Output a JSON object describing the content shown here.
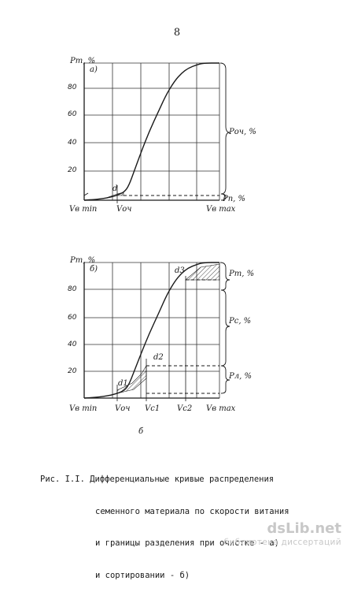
{
  "page_number": "8",
  "caption": {
    "prefix": "Рис. I.I.",
    "lines": [
      "Дифференциальные кривые распределения",
      "семенного материала по скорости витания",
      "и границы разделения при очистке - а)",
      "и сортировании - б)"
    ]
  },
  "watermark": {
    "brand": "dsLib.net",
    "subtitle": "библиотека диссертаций"
  },
  "chart_data": [
    {
      "type": "line",
      "panel_label": "а)",
      "ylabel": "Рт, %",
      "y_ticks": [
        "20",
        "40",
        "60",
        "80"
      ],
      "ylim": [
        0,
        100
      ],
      "x_ticks": [
        "Vв min",
        "Vоч",
        "Vв max"
      ],
      "series": [
        {
          "points": [
            [
              0,
              0
            ],
            [
              0.08,
              0.5
            ],
            [
              0.14,
              1.2
            ],
            [
              0.2,
              2.2
            ],
            [
              0.26,
              4
            ],
            [
              0.3,
              6
            ],
            [
              0.33,
              10
            ],
            [
              0.37,
              20
            ],
            [
              0.42,
              33
            ],
            [
              0.48,
              48
            ],
            [
              0.55,
              63
            ],
            [
              0.61,
              76
            ],
            [
              0.67,
              86
            ],
            [
              0.72,
              92
            ],
            [
              0.77,
              96
            ],
            [
              0.83,
              98.5
            ],
            [
              0.88,
              100
            ],
            [
              1,
              100
            ]
          ]
        }
      ],
      "annotations": [
        "d",
        "Роч, %",
        "Рп, %"
      ],
      "brace_labels": [
        "Роч, %",
        "Рп, %"
      ],
      "grid": true
    },
    {
      "type": "line",
      "panel_label": "б)",
      "ylabel": "Рт, %",
      "y_ticks": [
        "20",
        "40",
        "60",
        "80"
      ],
      "ylim": [
        0,
        100
      ],
      "x_ticks": [
        "Vв min",
        "Vоч",
        "Vс1",
        "Vс2",
        "Vв max"
      ],
      "series": [
        {
          "points": [
            [
              0,
              0
            ],
            [
              0.08,
              0.5
            ],
            [
              0.14,
              1.2
            ],
            [
              0.2,
              2.2
            ],
            [
              0.26,
              4
            ],
            [
              0.3,
              6
            ],
            [
              0.33,
              10
            ],
            [
              0.37,
              20
            ],
            [
              0.42,
              33
            ],
            [
              0.48,
              48
            ],
            [
              0.55,
              63
            ],
            [
              0.61,
              76
            ],
            [
              0.67,
              86
            ],
            [
              0.72,
              92
            ],
            [
              0.77,
              96
            ],
            [
              0.83,
              98.5
            ],
            [
              0.88,
              100
            ],
            [
              1,
              100
            ]
          ]
        }
      ],
      "annotations": [
        "d1",
        "d2",
        "d3"
      ],
      "brace_labels": [
        "Рт, %",
        "Рс, %",
        "Рл, %"
      ],
      "grid": true
    }
  ]
}
